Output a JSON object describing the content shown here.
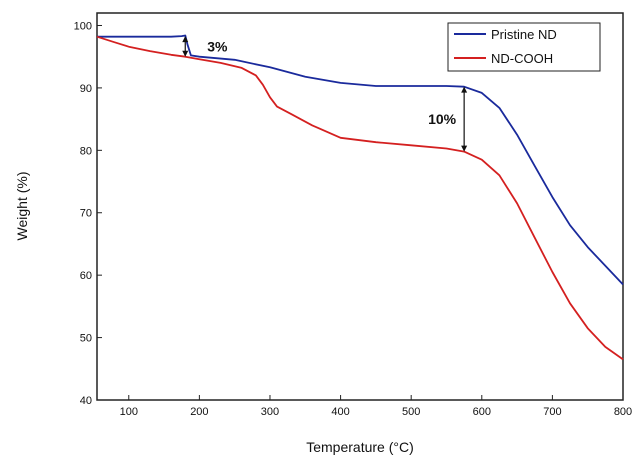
{
  "chart_data": {
    "type": "line",
    "title": "",
    "xlabel": "Temperature (°C)",
    "ylabel": "Weight (%)",
    "xlim": [
      55,
      800
    ],
    "ylim": [
      40,
      102
    ],
    "xticks": [
      100,
      200,
      300,
      400,
      500,
      600,
      700,
      800
    ],
    "yticks": [
      40,
      50,
      60,
      70,
      80,
      90,
      100
    ],
    "grid": false,
    "legend_position": "top-right",
    "series": [
      {
        "name": "Pristine ND",
        "color": "#1a2a9c",
        "x": [
          55,
          80,
          120,
          160,
          175,
          180,
          183,
          188,
          200,
          250,
          300,
          350,
          400,
          450,
          500,
          550,
          575,
          600,
          625,
          650,
          675,
          700,
          725,
          750,
          775,
          800
        ],
        "y": [
          98.2,
          98.2,
          98.2,
          98.2,
          98.3,
          98.4,
          97.0,
          95.2,
          95.0,
          94.5,
          93.3,
          91.8,
          90.8,
          90.3,
          90.3,
          90.3,
          90.2,
          89.2,
          86.8,
          82.5,
          77.5,
          72.5,
          68.0,
          64.5,
          61.5,
          58.5
        ]
      },
      {
        "name": "ND-COOH",
        "color": "#d42020",
        "x": [
          55,
          80,
          100,
          130,
          160,
          180,
          200,
          230,
          260,
          280,
          290,
          300,
          310,
          330,
          360,
          400,
          450,
          500,
          550,
          575,
          600,
          625,
          650,
          675,
          700,
          725,
          750,
          775,
          800
        ],
        "y": [
          98.2,
          97.3,
          96.6,
          95.9,
          95.3,
          95.0,
          94.6,
          94.0,
          93.2,
          92.0,
          90.5,
          88.5,
          87.0,
          85.8,
          84.0,
          82.0,
          81.3,
          80.8,
          80.3,
          79.8,
          78.5,
          76.0,
          71.5,
          66.0,
          60.5,
          55.5,
          51.5,
          48.5,
          46.5
        ]
      }
    ],
    "annotations": [
      {
        "text": "3%",
        "x": 180,
        "y_top": 98.3,
        "y_bottom": 95.0
      },
      {
        "text": "10%",
        "x": 575,
        "y_top": 90.2,
        "y_bottom": 79.8
      }
    ]
  }
}
